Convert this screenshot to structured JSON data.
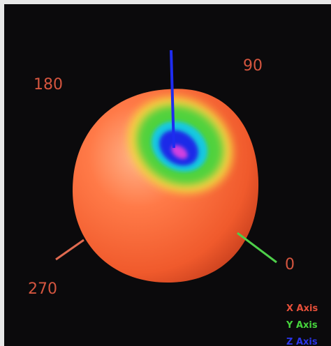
{
  "angle_labels": [
    "180",
    "90",
    "0",
    "270"
  ],
  "legend": [
    "X Axis",
    "Y Axis",
    "Z Axis"
  ]
}
